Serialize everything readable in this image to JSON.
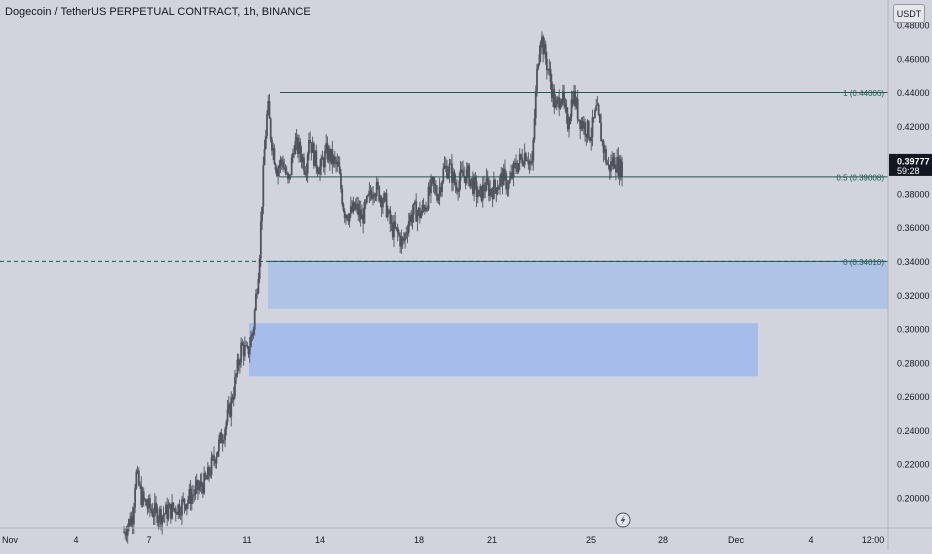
{
  "header": {
    "title": "Dogecoin / TetherUS PERPETUAL CONTRACT, 1h, BINANCE",
    "currency": "USDT"
  },
  "chart_data": {
    "type": "candlestick",
    "symbol": "DOGEUSDT.P",
    "interval": "1h",
    "exchange": "BINANCE",
    "y_axis": {
      "range": [
        0.1815,
        0.4855
      ],
      "tick_labels": [
        "0.48000",
        "0.46000",
        "0.44000",
        "0.42000",
        "0.40000",
        "0.38000",
        "0.36000",
        "0.34000",
        "0.32000",
        "0.30000",
        "0.28000",
        "0.26000",
        "0.24000",
        "0.22000",
        "0.20000"
      ],
      "tick_values": [
        0.48,
        0.46,
        0.44,
        0.42,
        0.4,
        0.38,
        0.36,
        0.34,
        0.32,
        0.3,
        0.28,
        0.26,
        0.24,
        0.22,
        0.2
      ]
    },
    "x_axis": {
      "tick_labels": [
        "Nov",
        "4",
        "7",
        "11",
        "14",
        "18",
        "21",
        "25",
        "28",
        "Dec",
        "4",
        "12:00"
      ]
    },
    "last_price": {
      "value": "0.39777",
      "countdown": "59:28",
      "price": 0.39777
    },
    "fib_levels": [
      {
        "label": "1 (0.44006)",
        "price": 0.44006
      },
      {
        "label": "0.5 (0.39008)",
        "price": 0.39008
      },
      {
        "label": "0 (0.34010)",
        "price": 0.3401
      }
    ],
    "zones": [
      {
        "name": "upper demand zone",
        "top": 0.3401,
        "bottom": 0.312,
        "color": "#adc2e6"
      },
      {
        "name": "lower demand zone",
        "top": 0.3035,
        "bottom": 0.272,
        "color": "#a3bbea"
      }
    ],
    "candle_color": "#50535e",
    "price_path": [
      [
        0,
        0.18
      ],
      [
        3,
        0.19
      ],
      [
        4,
        0.215
      ],
      [
        6,
        0.2
      ],
      [
        8,
        0.195
      ],
      [
        10,
        0.192
      ],
      [
        13,
        0.19
      ],
      [
        16,
        0.193
      ],
      [
        19,
        0.195
      ],
      [
        22,
        0.2
      ],
      [
        25,
        0.205
      ],
      [
        28,
        0.21
      ],
      [
        31,
        0.225
      ],
      [
        34,
        0.24
      ],
      [
        36,
        0.252
      ],
      [
        38,
        0.27
      ],
      [
        40,
        0.29
      ],
      [
        42,
        0.285
      ],
      [
        44,
        0.3
      ],
      [
        45,
        0.32
      ],
      [
        46,
        0.34
      ],
      [
        47,
        0.375
      ],
      [
        48,
        0.41
      ],
      [
        49,
        0.432
      ],
      [
        50,
        0.415
      ],
      [
        52,
        0.395
      ],
      [
        54,
        0.4
      ],
      [
        56,
        0.385
      ],
      [
        58,
        0.41
      ],
      [
        60,
        0.405
      ],
      [
        62,
        0.395
      ],
      [
        63,
        0.415
      ],
      [
        65,
        0.4
      ],
      [
        67,
        0.395
      ],
      [
        69,
        0.405
      ],
      [
        71,
        0.4
      ],
      [
        73,
        0.395
      ],
      [
        75,
        0.37
      ],
      [
        77,
        0.368
      ],
      [
        79,
        0.372
      ],
      [
        81,
        0.365
      ],
      [
        83,
        0.375
      ],
      [
        85,
        0.385
      ],
      [
        87,
        0.38
      ],
      [
        89,
        0.375
      ],
      [
        91,
        0.36
      ],
      [
        93,
        0.357
      ],
      [
        95,
        0.35
      ],
      [
        97,
        0.365
      ],
      [
        99,
        0.37
      ],
      [
        101,
        0.368
      ],
      [
        103,
        0.375
      ],
      [
        105,
        0.385
      ],
      [
        107,
        0.38
      ],
      [
        109,
        0.395
      ],
      [
        111,
        0.395
      ],
      [
        113,
        0.385
      ],
      [
        115,
        0.39
      ],
      [
        117,
        0.392
      ],
      [
        119,
        0.385
      ],
      [
        121,
        0.378
      ],
      [
        123,
        0.385
      ],
      [
        125,
        0.382
      ],
      [
        127,
        0.385
      ],
      [
        129,
        0.39
      ],
      [
        131,
        0.385
      ],
      [
        133,
        0.395
      ],
      [
        135,
        0.4
      ],
      [
        137,
        0.405
      ],
      [
        139,
        0.395
      ],
      [
        140,
        0.43
      ],
      [
        141,
        0.46
      ],
      [
        142,
        0.475
      ],
      [
        143,
        0.465
      ],
      [
        145,
        0.45
      ],
      [
        147,
        0.43
      ],
      [
        149,
        0.44
      ],
      [
        151,
        0.42
      ],
      [
        153,
        0.44
      ],
      [
        155,
        0.425
      ],
      [
        157,
        0.42
      ],
      [
        159,
        0.415
      ],
      [
        161,
        0.43
      ],
      [
        163,
        0.41
      ],
      [
        165,
        0.395
      ],
      [
        167,
        0.4
      ],
      [
        169,
        0.395
      ],
      [
        170,
        0.398
      ]
    ]
  }
}
